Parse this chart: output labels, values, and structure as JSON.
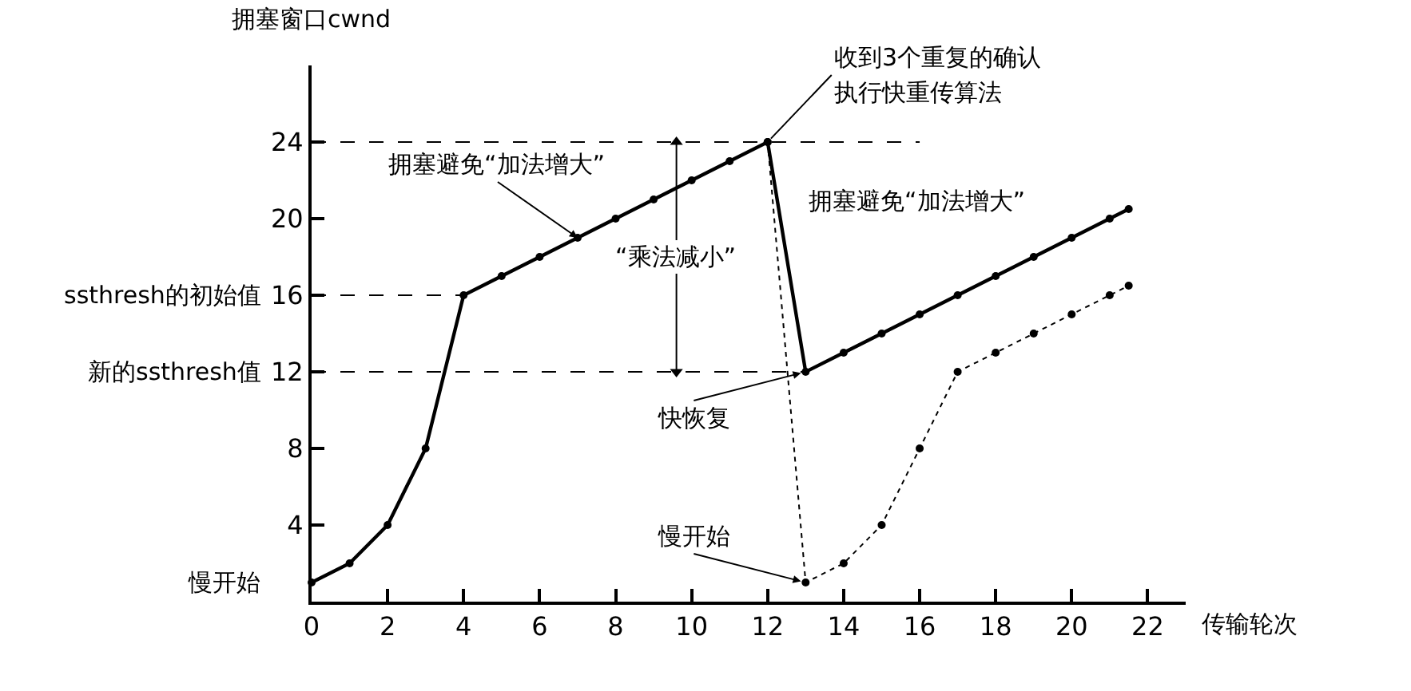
{
  "chart_data": {
    "type": "line",
    "xlabel": "传输轮次",
    "ylabel": "拥塞窗口cwnd",
    "xlim": [
      0,
      23
    ],
    "ylim": [
      0,
      28
    ],
    "xticks": [
      0,
      2,
      4,
      6,
      8,
      10,
      12,
      14,
      16,
      18,
      20,
      22
    ],
    "yticks": [
      4,
      8,
      12,
      16,
      20,
      24
    ],
    "series": [
      {
        "color": "#000000",
        "x": [
          0,
          1,
          2,
          3,
          4,
          5,
          6,
          7,
          8,
          9,
          10,
          11,
          12,
          13,
          14,
          15,
          16,
          17,
          18,
          19,
          20,
          21,
          21.5
        ],
        "values": [
          1,
          2,
          4,
          8,
          16,
          17,
          18,
          19,
          20,
          21,
          22,
          23,
          24,
          12,
          13,
          14,
          15,
          16,
          17,
          18,
          19,
          20,
          20.5
        ],
        "marker": "circle",
        "line_style": "solid"
      },
      {
        "color": "#000000",
        "x": [
          12,
          13,
          14,
          15,
          16,
          17,
          18,
          19,
          20,
          21,
          21.5
        ],
        "values": [
          24,
          1,
          2,
          4,
          8,
          12,
          13,
          14,
          15,
          16,
          16.5
        ],
        "marker": "circle",
        "line_style": "dotted"
      },
      {
        "color": "#000000",
        "x": [
          0,
          16
        ],
        "values": [
          24,
          24
        ],
        "marker": "none",
        "line_style": "dashed"
      },
      {
        "color": "#000000",
        "x": [
          0,
          4
        ],
        "values": [
          16,
          16
        ],
        "marker": "none",
        "line_style": "dashed"
      },
      {
        "color": "#000000",
        "x": [
          0,
          13
        ],
        "values": [
          12,
          12
        ],
        "marker": "none",
        "line_style": "dashed"
      },
      {
        "color": "#000000",
        "x": [
          9.6,
          9.6
        ],
        "values": [
          12,
          24
        ],
        "marker": "triangle",
        "line_style": "solid"
      }
    ],
    "annotations": [
      {
        "text": "收到3个重复的确认",
        "x": 12,
        "y": 24
      },
      "执行快重传算法",
      {
        "text": "拥塞避免“加法增大”",
        "x": 7,
        "y": 19
      },
      "拥塞避免“加法增大”",
      {
        "text": "“乘法减小”",
        "x": 9.6,
        "y": 18
      },
      {
        "text": "快恢复",
        "x": 13,
        "y": 12
      },
      {
        "text": "慢开始",
        "x": 13,
        "y": 1
      },
      {
        "text": "ssthresh的初始值",
        "x": 0,
        "y": 16
      },
      {
        "text": "新的ssthresh值",
        "x": 0,
        "y": 12
      },
      {
        "text": "慢开始",
        "x": 0,
        "y": 1
      }
    ]
  }
}
